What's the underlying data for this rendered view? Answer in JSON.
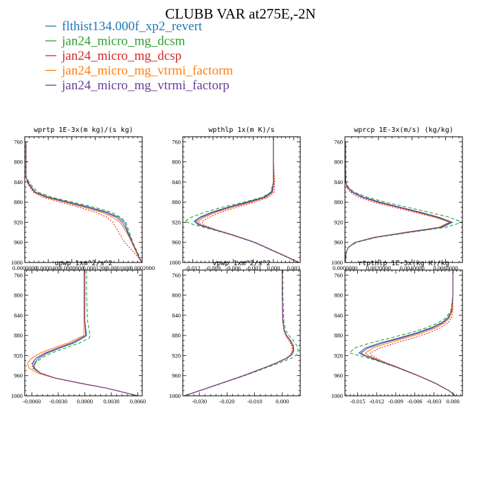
{
  "figure": {
    "title": "CLUBB VAR at275E,-2N"
  },
  "legend": [
    {
      "label": "flthist134.000f_xp2_revert",
      "color": "#1f77b4",
      "dash": "solid"
    },
    {
      "label": "jan24_micro_mg_dcsm",
      "color": "#2ca02c",
      "dash": "dashed"
    },
    {
      "label": "jan24_micro_mg_dcsp",
      "color": "#d62728",
      "dash": "dotted"
    },
    {
      "label": "jan24_micro_mg_vtrmi_factorm",
      "color": "#ff7f0e",
      "dash": "solid"
    },
    {
      "label": "jan24_micro_mg_vtrmi_factorp",
      "color": "#6a3d9a",
      "dash": "solid"
    }
  ],
  "chart_data": [
    {
      "type": "line",
      "title": "wprtp  1E-3x(m kg)/(s kg)",
      "xlim": [
        0,
        0.0002
      ],
      "ylim": [
        1000,
        750
      ],
      "xticks": [
        0.0,
        4e-05,
        8e-05,
        0.00012,
        0.00016,
        0.0002
      ],
      "xtick_labels": [
        "0.0000000",
        "0.0000400",
        "0.0000800",
        "0.0001200",
        "0.0001600",
        "0.0002000"
      ],
      "yticks": [
        760,
        800,
        840,
        880,
        920,
        960,
        1000
      ],
      "y": [
        760,
        800,
        830,
        845,
        860,
        870,
        880,
        890,
        900,
        910,
        920,
        930,
        940,
        950,
        960,
        970,
        980,
        990,
        1000
      ],
      "series": [
        {
          "values": [
            2e-06,
            2e-06,
            2e-06,
            8e-06,
            1.8e-05,
            4e-05,
            7.5e-05,
            0.00011,
            0.00014,
            0.00016,
            0.00017,
            0.000173,
            0.000176,
            0.00018,
            0.000183,
            0.000187,
            0.000191,
            0.000195,
            0.000199
          ]
        },
        {
          "values": [
            2e-06,
            2e-06,
            2e-06,
            1e-05,
            2.2e-05,
            4.5e-05,
            8.2e-05,
            0.000118,
            0.000147,
            0.000163,
            0.000172,
            0.000175,
            0.000178,
            0.000181,
            0.000184,
            0.000188,
            0.000192,
            0.000196,
            0.000199
          ]
        },
        {
          "values": [
            2e-06,
            2e-06,
            2e-06,
            6e-06,
            1.4e-05,
            3e-05,
            6e-05,
            9.2e-05,
            0.00012,
            0.00014,
            0.00015,
            0.000155,
            0.00016,
            0.000165,
            0.00017,
            0.000178,
            0.000186,
            0.000193,
            0.000199
          ]
        },
        {
          "values": [
            2e-06,
            2e-06,
            2e-06,
            7e-06,
            1.6e-05,
            3.5e-05,
            6.8e-05,
            0.0001,
            0.00013,
            0.00015,
            0.000162,
            0.000168,
            0.000173,
            0.000178,
            0.000182,
            0.000186,
            0.00019,
            0.000194,
            0.000199
          ]
        },
        {
          "values": [
            2e-06,
            2e-06,
            2e-06,
            7e-06,
            1.7e-05,
            3.8e-05,
            7.2e-05,
            0.000106,
            0.000136,
            0.000156,
            0.000166,
            0.000171,
            0.000175,
            0.000179,
            0.000183,
            0.000187,
            0.000191,
            0.000195,
            0.000199
          ]
        }
      ]
    },
    {
      "type": "line",
      "title": "wpthlp  1x(m K)/s",
      "xlim": [
        -0.0135,
        0.004
      ],
      "ylim": [
        1000,
        750
      ],
      "xticks": [
        -0.012,
        -0.009,
        -0.006,
        -0.003,
        0.0,
        0.003
      ],
      "xtick_labels": [
        "-0.012",
        "-0.009",
        "-0.006",
        "-0.003",
        "0.000",
        "0.003"
      ],
      "yticks": [
        760,
        800,
        840,
        880,
        920,
        960,
        1000
      ],
      "y": [
        750,
        800,
        840,
        860,
        870,
        880,
        890,
        900,
        910,
        918,
        925,
        935,
        945,
        960,
        975,
        990,
        1000
      ],
      "series": [
        {
          "values": [
            0.0,
            0.0,
            0.0,
            -0.0003,
            -0.0014,
            -0.004,
            -0.0068,
            -0.0092,
            -0.011,
            -0.0118,
            -0.0112,
            -0.0088,
            -0.0062,
            -0.0028,
            -0.0003,
            0.0022,
            0.0037
          ]
        },
        {
          "values": [
            0.0,
            0.0,
            0.0,
            -0.0004,
            -0.0016,
            -0.0044,
            -0.0076,
            -0.0102,
            -0.0122,
            -0.0132,
            -0.0118,
            -0.009,
            -0.0063,
            -0.0029,
            -0.0004,
            0.0021,
            0.0037
          ]
        },
        {
          "values": [
            0.0,
            0.0,
            0.0002,
            0.0001,
            -0.0007,
            -0.0028,
            -0.0054,
            -0.0078,
            -0.0096,
            -0.0106,
            -0.0105,
            -0.0085,
            -0.006,
            -0.0027,
            -0.0002,
            0.0023,
            0.0038
          ]
        },
        {
          "values": [
            0.0,
            0.0,
            0.0001,
            -0.0001,
            -0.001,
            -0.0033,
            -0.0061,
            -0.0085,
            -0.0103,
            -0.0112,
            -0.0108,
            -0.0086,
            -0.0061,
            -0.0028,
            -0.0003,
            0.0022,
            0.0037
          ]
        },
        {
          "values": [
            0.0,
            0.0,
            0.0,
            -0.0002,
            -0.0012,
            -0.0037,
            -0.0065,
            -0.0089,
            -0.0107,
            -0.0116,
            -0.011,
            -0.0087,
            -0.0062,
            -0.0028,
            -0.0003,
            0.0022,
            0.0037
          ]
        }
      ]
    },
    {
      "type": "line",
      "title": "wprcp  1E-3x(m/s) (kg/kg)",
      "xlim": [
        0,
        0.007
      ],
      "ylim": [
        1000,
        750
      ],
      "xticks": [
        0.0,
        0.002,
        0.004,
        0.006
      ],
      "xtick_labels": [
        "0.0000000",
        "0.0020000",
        "0.0040000",
        "0.0060000"
      ],
      "yticks": [
        760,
        800,
        840,
        880,
        920,
        960,
        1000
      ],
      "y": [
        760,
        800,
        840,
        850,
        860,
        870,
        880,
        890,
        900,
        910,
        920,
        930,
        940,
        950,
        960,
        970,
        980,
        990,
        1000
      ],
      "series": [
        {
          "values": [
            3e-05,
            3e-05,
            5e-05,
            0.00015,
            0.00045,
            0.0011,
            0.0021,
            0.0033,
            0.0045,
            0.0056,
            0.0064,
            0.0058,
            0.0038,
            0.0018,
            0.0006,
            0.0002,
            7e-05,
            4e-05,
            3e-05
          ]
        },
        {
          "values": [
            3e-05,
            3e-05,
            5e-05,
            0.0002,
            0.00055,
            0.0013,
            0.0024,
            0.0037,
            0.005,
            0.0062,
            0.007,
            0.006,
            0.0039,
            0.0019,
            0.0007,
            0.0002,
            7e-05,
            4e-05,
            3e-05
          ]
        },
        {
          "values": [
            3e-05,
            3e-05,
            4e-05,
            0.0001,
            0.0003,
            0.0008,
            0.0017,
            0.0029,
            0.0041,
            0.0053,
            0.0063,
            0.0057,
            0.0037,
            0.0017,
            0.0006,
            0.0002,
            7e-05,
            4e-05,
            3e-05
          ]
        },
        {
          "values": [
            3e-05,
            3e-05,
            5e-05,
            0.00013,
            0.0004,
            0.001,
            0.0019,
            0.0031,
            0.0043,
            0.0054,
            0.0062,
            0.0056,
            0.0036,
            0.0017,
            0.0006,
            0.0002,
            7e-05,
            4e-05,
            3e-05
          ]
        },
        {
          "values": [
            3e-05,
            3e-05,
            5e-05,
            0.00014,
            0.00042,
            0.001,
            0.002,
            0.0032,
            0.0044,
            0.0055,
            0.0063,
            0.0057,
            0.0037,
            0.0018,
            0.0006,
            0.0002,
            7e-05,
            4e-05,
            3e-05
          ]
        }
      ]
    },
    {
      "type": "line",
      "title": "upwp  1xm^2/s^2",
      "xlim": [
        -0.0068,
        0.0065
      ],
      "ylim": [
        1000,
        750
      ],
      "xticks": [
        -0.006,
        -0.003,
        0.0,
        0.003,
        0.006
      ],
      "xtick_labels": [
        "-0.0060",
        "-0.0030",
        "0.0000",
        "0.0030",
        "0.0060"
      ],
      "yticks": [
        760,
        800,
        840,
        880,
        920,
        960,
        1000
      ],
      "y": [
        750,
        800,
        850,
        880,
        885,
        895,
        905,
        915,
        925,
        935,
        945,
        955,
        965,
        975,
        985,
        1000
      ],
      "series": [
        {
          "values": [
            0.0,
            0.0,
            0.0,
            0.0002,
            -0.0002,
            -0.0012,
            -0.0028,
            -0.0042,
            -0.0052,
            -0.0057,
            -0.0057,
            -0.005,
            -0.0033,
            -0.0005,
            0.0025,
            0.006
          ]
        },
        {
          "values": [
            0.0002,
            0.0002,
            0.0003,
            0.0006,
            0.0005,
            -0.0006,
            -0.0022,
            -0.0038,
            -0.0049,
            -0.0056,
            -0.0057,
            -0.005,
            -0.0033,
            -0.0005,
            0.0025,
            0.006
          ]
        },
        {
          "values": [
            0.0,
            0.0,
            0.0,
            0.0001,
            -0.0004,
            -0.0014,
            -0.003,
            -0.0044,
            -0.0055,
            -0.006,
            -0.0059,
            -0.0051,
            -0.0033,
            -0.0005,
            0.0025,
            0.006
          ]
        },
        {
          "values": [
            -0.0001,
            -0.0001,
            -0.0001,
            -0.0001,
            -0.0007,
            -0.0019,
            -0.0036,
            -0.005,
            -0.006,
            -0.0065,
            -0.0063,
            -0.0053,
            -0.0034,
            -0.0006,
            0.0025,
            0.006
          ]
        },
        {
          "values": [
            0.0,
            0.0,
            0.0,
            0.0001,
            -0.0004,
            -0.0015,
            -0.0031,
            -0.0045,
            -0.0055,
            -0.0059,
            -0.0058,
            -0.005,
            -0.0033,
            -0.0005,
            0.0025,
            0.006
          ]
        }
      ]
    },
    {
      "type": "line",
      "title": "vpwp  1xm^2/s^2",
      "xlim": [
        -0.036,
        0.0065
      ],
      "ylim": [
        1000,
        750
      ],
      "xticks": [
        -0.03,
        -0.02,
        -0.01,
        0.0
      ],
      "xtick_labels": [
        "-0.030",
        "-0.020",
        "-0.010",
        "0.000"
      ],
      "yticks": [
        760,
        800,
        840,
        880,
        920,
        960,
        1000
      ],
      "y": [
        750,
        800,
        850,
        870,
        880,
        890,
        900,
        910,
        918,
        925,
        935,
        945,
        960,
        975,
        990,
        1000
      ],
      "series": [
        {
          "values": [
            0.0,
            0.0,
            0.0002,
            0.0007,
            0.0016,
            0.003,
            0.004,
            0.0042,
            0.0035,
            0.0018,
            -0.0022,
            -0.0068,
            -0.014,
            -0.022,
            -0.03,
            -0.0355
          ]
        },
        {
          "values": [
            0.0002,
            0.0002,
            0.0005,
            0.0012,
            0.0024,
            0.004,
            0.0052,
            0.0057,
            0.0052,
            0.0034,
            -0.0012,
            -0.0062,
            -0.0136,
            -0.0218,
            -0.0299,
            -0.0355
          ]
        },
        {
          "values": [
            0.0,
            0.0,
            0.0001,
            0.0005,
            0.0012,
            0.0024,
            0.0034,
            0.0036,
            0.003,
            0.0014,
            -0.0025,
            -0.007,
            -0.0142,
            -0.0221,
            -0.03,
            -0.0355
          ]
        },
        {
          "values": [
            0.0,
            0.0,
            0.0002,
            0.0006,
            0.0014,
            0.0027,
            0.0037,
            0.0039,
            0.0032,
            0.0016,
            -0.0023,
            -0.0069,
            -0.0141,
            -0.022,
            -0.03,
            -0.0355
          ]
        },
        {
          "values": [
            0.0,
            0.0,
            0.0002,
            0.0007,
            0.0015,
            0.0029,
            0.0039,
            0.0041,
            0.0034,
            0.0017,
            -0.0022,
            -0.0068,
            -0.014,
            -0.022,
            -0.03,
            -0.0355
          ]
        }
      ]
    },
    {
      "type": "line",
      "title": "rtpthlp  1E-3x(kg K)/kg",
      "xlim": [
        -0.017,
        0.0015
      ],
      "ylim": [
        1000,
        750
      ],
      "xticks": [
        -0.015,
        -0.012,
        -0.009,
        -0.006,
        -0.003,
        0.0
      ],
      "xtick_labels": [
        "-0.015",
        "-0.012",
        "-0.009",
        "-0.006",
        "-0.003",
        "0.000"
      ],
      "yticks": [
        760,
        800,
        840,
        880,
        920,
        960,
        1000
      ],
      "y": [
        750,
        800,
        830,
        845,
        855,
        865,
        875,
        885,
        895,
        905,
        915,
        920,
        930,
        945,
        960,
        975,
        990,
        1000
      ],
      "series": [
        {
          "values": [
            0.0,
            0.0,
            -0.0002,
            -0.0008,
            -0.0018,
            -0.0035,
            -0.0058,
            -0.0085,
            -0.0115,
            -0.0138,
            -0.0148,
            -0.014,
            -0.0118,
            -0.0085,
            -0.0055,
            -0.0028,
            -0.0006,
            0.0004
          ]
        },
        {
          "values": [
            0.0,
            0.0,
            -0.0003,
            -0.0011,
            -0.0023,
            -0.0042,
            -0.0068,
            -0.0098,
            -0.013,
            -0.0155,
            -0.0163,
            -0.0148,
            -0.012,
            -0.0086,
            -0.0055,
            -0.0028,
            -0.0006,
            0.0004
          ]
        },
        {
          "values": [
            0.0,
            0.0,
            0.0,
            -0.0002,
            -0.0008,
            -0.002,
            -0.0038,
            -0.0062,
            -0.009,
            -0.0115,
            -0.013,
            -0.0128,
            -0.0113,
            -0.0083,
            -0.0054,
            -0.0027,
            -0.0006,
            0.0004
          ]
        },
        {
          "values": [
            0.0,
            0.0,
            -0.0001,
            -0.0005,
            -0.0013,
            -0.0027,
            -0.0048,
            -0.0074,
            -0.0102,
            -0.0126,
            -0.0138,
            -0.0133,
            -0.0115,
            -0.0084,
            -0.0054,
            -0.0027,
            -0.0006,
            0.0004
          ]
        },
        {
          "values": [
            0.0,
            0.0,
            -0.0002,
            -0.0007,
            -0.0016,
            -0.0032,
            -0.0054,
            -0.0081,
            -0.011,
            -0.0134,
            -0.0145,
            -0.0138,
            -0.0117,
            -0.0085,
            -0.0055,
            -0.0028,
            -0.0006,
            0.0004
          ]
        }
      ]
    }
  ]
}
